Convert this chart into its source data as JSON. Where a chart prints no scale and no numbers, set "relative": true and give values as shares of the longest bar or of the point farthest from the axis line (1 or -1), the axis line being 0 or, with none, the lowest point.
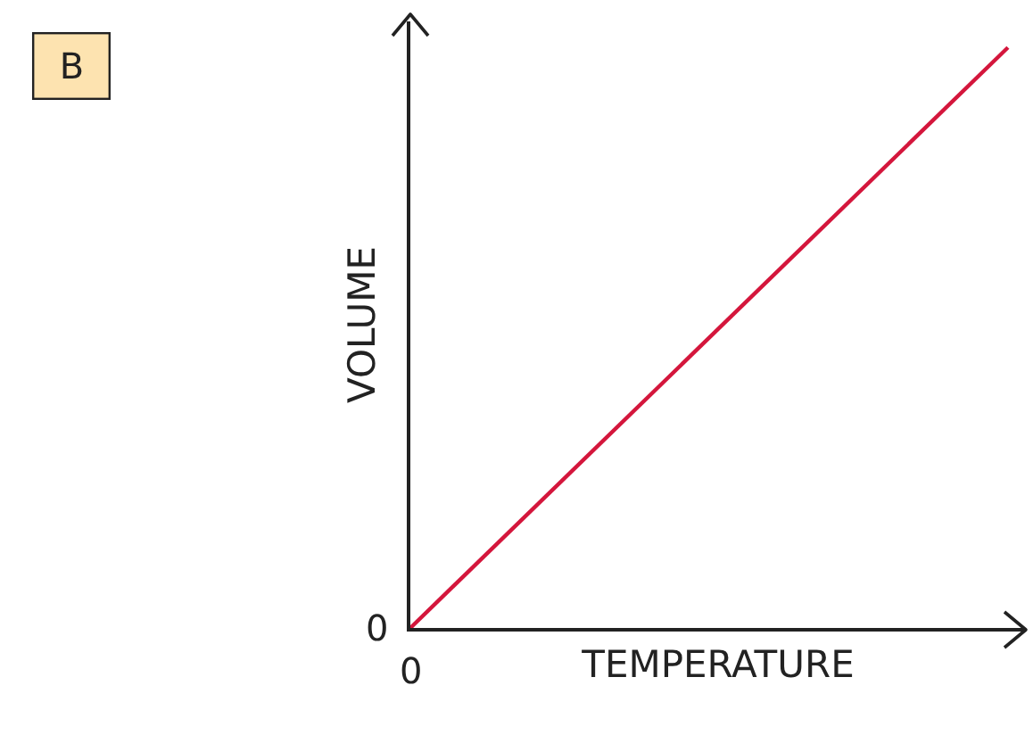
{
  "chart_data": {
    "type": "line",
    "relative": true,
    "categories": [
      null,
      null
    ],
    "series": [
      {
        "color": "#d4163c",
        "values": [
          0,
          1
        ]
      }
    ],
    "xlabel": "TEMPERATURE",
    "ylabel": "VOLUME",
    "annotations": [
      "B",
      "0",
      "0"
    ],
    "grid": false,
    "marker": "none",
    "line_style": "solid"
  }
}
